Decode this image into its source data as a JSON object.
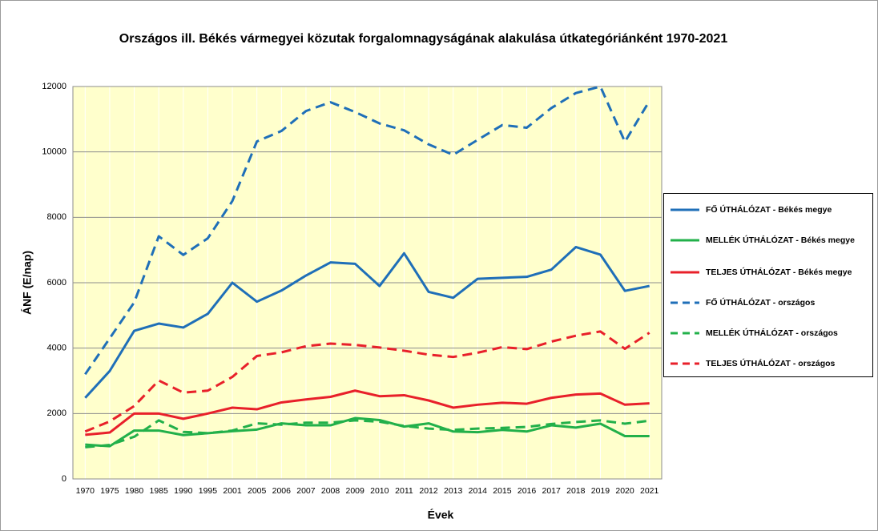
{
  "chart_data": {
    "type": "line",
    "title": "Országos ill. Békés vármegyei közutak forgalomnagyságának alakulása útkategóriánként 1970-2021",
    "xlabel": "Évek",
    "ylabel": "ÁNF (E/nap)",
    "categories": [
      "1970",
      "1975",
      "1980",
      "1985",
      "1990",
      "1995",
      "2001",
      "2005",
      "2006",
      "2007",
      "2008",
      "2009",
      "2010",
      "2011",
      "2012",
      "2013",
      "2014",
      "2015",
      "2016",
      "2017",
      "2018",
      "2019",
      "2020",
      "2021"
    ],
    "ylim": [
      0,
      12000
    ],
    "yticks": [
      0,
      2000,
      4000,
      6000,
      8000,
      10000,
      12000
    ],
    "grid": true,
    "legend": "right",
    "series": [
      {
        "name": "FŐ ÚTHÁLÓZAT - Békés megye",
        "color": "#1f6fb8",
        "dashed": false,
        "values": [
          2480,
          3300,
          4530,
          4750,
          4630,
          5050,
          6000,
          5420,
          5760,
          6220,
          6620,
          6580,
          5900,
          6900,
          5720,
          5540,
          6120,
          6150,
          6180,
          6400,
          7090,
          6860,
          5750,
          5900
        ]
      },
      {
        "name": "MELLÉK ÚTHÁLÓZAT - Békés megye",
        "color": "#22b04a",
        "dashed": false,
        "values": [
          1050,
          1000,
          1480,
          1480,
          1340,
          1400,
          1460,
          1510,
          1700,
          1640,
          1640,
          1860,
          1800,
          1600,
          1700,
          1450,
          1430,
          1500,
          1450,
          1640,
          1570,
          1690,
          1310,
          1310
        ]
      },
      {
        "name": "TELJES ÚTHÁLÓZAT - Békés megye",
        "color": "#e8202a",
        "dashed": false,
        "values": [
          1350,
          1420,
          2000,
          2000,
          1840,
          2000,
          2180,
          2130,
          2340,
          2430,
          2510,
          2700,
          2530,
          2560,
          2400,
          2180,
          2270,
          2330,
          2300,
          2480,
          2580,
          2610,
          2270,
          2310
        ]
      },
      {
        "name": "FŐ ÚTHÁLÓZAT - országos",
        "color": "#1f6fb8",
        "dashed": true,
        "values": [
          3200,
          4300,
          5400,
          7420,
          6850,
          7360,
          8500,
          10320,
          10640,
          11250,
          11520,
          11220,
          10870,
          10660,
          10230,
          9910,
          10370,
          10820,
          10740,
          11340,
          11800,
          12000,
          10310,
          11560
        ]
      },
      {
        "name": "MELLÉK ÚTHÁLÓZAT - országos",
        "color": "#22b04a",
        "dashed": true,
        "values": [
          970,
          1040,
          1290,
          1790,
          1440,
          1400,
          1480,
          1700,
          1660,
          1720,
          1720,
          1790,
          1750,
          1620,
          1540,
          1500,
          1540,
          1560,
          1590,
          1680,
          1740,
          1790,
          1690,
          1780
        ]
      },
      {
        "name": "TELJES ÚTHÁLÓZAT - országos",
        "color": "#e8202a",
        "dashed": true,
        "values": [
          1450,
          1760,
          2230,
          3010,
          2640,
          2700,
          3120,
          3760,
          3870,
          4060,
          4140,
          4100,
          4020,
          3920,
          3800,
          3730,
          3860,
          4030,
          3970,
          4200,
          4380,
          4510,
          3980,
          4470
        ]
      }
    ]
  }
}
